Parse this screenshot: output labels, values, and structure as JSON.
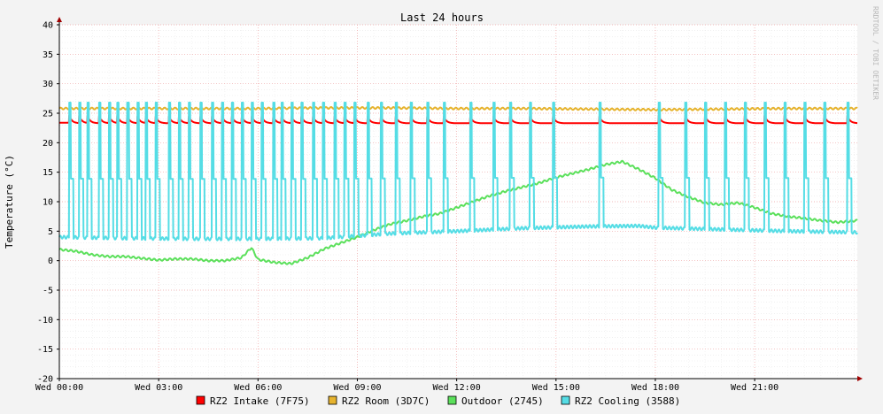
{
  "chart_data": {
    "type": "line",
    "title": "Last 24 hours",
    "ylabel": "Temperature (°C)",
    "xlabel": "",
    "watermark": "RRDTOOL / TOBI OETIKER",
    "ylim": [
      -20,
      40
    ],
    "yticks": [
      "40",
      "35",
      "30",
      "25",
      "20",
      "15",
      "10",
      "5",
      "0",
      "-5",
      "-10",
      "-15",
      "-20"
    ],
    "xlim_hours": [
      0,
      24.1
    ],
    "xtick_hours": [
      0,
      3,
      6,
      9,
      12,
      15,
      18,
      21
    ],
    "xticks": [
      "Wed 00:00",
      "Wed 03:00",
      "Wed 06:00",
      "Wed 09:00",
      "Wed 12:00",
      "Wed 15:00",
      "Wed 18:00",
      "Wed 21:00"
    ],
    "grid": true,
    "legend_position": "bottom",
    "series": [
      {
        "name": "RZ2 Intake (7F75)",
        "color": "#ff0000",
        "pattern": "sawtooth",
        "cycle_times": [
          0.3,
          0.6,
          0.85,
          1.2,
          1.5,
          1.75,
          2.05,
          2.35,
          2.6,
          2.9,
          3.3,
          3.6,
          3.9,
          4.25,
          4.6,
          4.9,
          5.2,
          5.5,
          5.8,
          6.1,
          6.45,
          6.7,
          7.0,
          7.3,
          7.65,
          7.95,
          8.3,
          8.6,
          8.9,
          9.3,
          9.7,
          10.15,
          10.6,
          11.1,
          11.6,
          12.4,
          13.1,
          13.6,
          14.2,
          14.9,
          16.3,
          18.1,
          18.9,
          19.5,
          20.1,
          20.7,
          21.3,
          21.9,
          22.5,
          23.1,
          23.8
        ],
        "base": 23.3,
        "peak": 24.6
      },
      {
        "name": "RZ2 Room (3D7C)",
        "color": "#e6b32e",
        "x": [
          0,
          2,
          4,
          6,
          8,
          10,
          12,
          14,
          16,
          18,
          20,
          22,
          24.1
        ],
        "y": [
          25.8,
          25.8,
          25.8,
          25.8,
          25.9,
          25.9,
          25.8,
          25.8,
          25.7,
          25.6,
          25.7,
          25.8,
          25.8
        ]
      },
      {
        "name": "Outdoor (2745)",
        "color": "#5be05b",
        "x": [
          0,
          0.5,
          1,
          1.5,
          2,
          2.5,
          3,
          3.5,
          4,
          4.5,
          5,
          5.5,
          5.8,
          6,
          6.5,
          7,
          7.5,
          8,
          8.5,
          9,
          9.5,
          10,
          10.5,
          11,
          11.5,
          12,
          12.5,
          13,
          13.5,
          14,
          14.5,
          15,
          15.5,
          16,
          16.5,
          17,
          17.5,
          18,
          18.5,
          19,
          19.5,
          20,
          20.5,
          21,
          21.5,
          22,
          22.5,
          23,
          23.5,
          24.1
        ],
        "y": [
          1.9,
          1.6,
          1.0,
          0.7,
          0.7,
          0.4,
          0.1,
          0.3,
          0.3,
          0,
          0,
          0.5,
          2.2,
          0.2,
          -0.3,
          -0.5,
          0.5,
          2.0,
          3.0,
          4.0,
          5.2,
          6.2,
          6.8,
          7.5,
          8.0,
          9.0,
          10.0,
          11.0,
          11.8,
          12.5,
          13.2,
          14.1,
          14.8,
          15.5,
          16.3,
          16.8,
          15.5,
          14.0,
          12.0,
          10.8,
          9.8,
          9.5,
          9.8,
          9.0,
          8.0,
          7.5,
          7.2,
          6.8,
          6.5,
          6.8
        ]
      },
      {
        "name": "RZ2 Cooling (3588)",
        "color": "#55dde5",
        "pattern": "spikes",
        "spike_times": [
          0.3,
          0.6,
          0.85,
          1.2,
          1.5,
          1.75,
          2.05,
          2.35,
          2.6,
          2.9,
          3.3,
          3.6,
          3.9,
          4.25,
          4.6,
          4.9,
          5.2,
          5.5,
          5.8,
          6.1,
          6.45,
          6.7,
          7.0,
          7.3,
          7.65,
          7.95,
          8.3,
          8.6,
          8.9,
          9.3,
          9.7,
          10.15,
          10.6,
          11.1,
          11.6,
          12.4,
          13.1,
          13.6,
          14.2,
          14.9,
          16.3,
          18.1,
          18.9,
          19.5,
          20.1,
          20.7,
          21.3,
          21.9,
          22.5,
          23.1,
          23.8
        ],
        "peak": 26.8,
        "baseline_x": [
          0,
          2,
          4,
          6,
          8,
          9,
          10,
          12,
          14,
          16,
          17.5,
          18,
          20,
          22,
          24.1
        ],
        "baseline_y": [
          4.0,
          3.8,
          3.7,
          3.7,
          3.8,
          4.2,
          4.6,
          5.0,
          5.5,
          5.8,
          5.9,
          5.6,
          5.3,
          5.0,
          4.8
        ]
      }
    ]
  }
}
